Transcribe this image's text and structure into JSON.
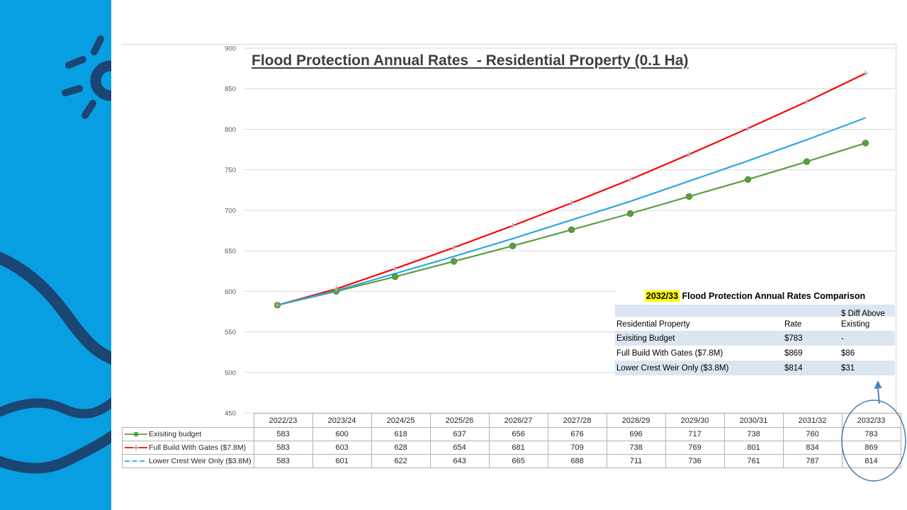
{
  "chart": {
    "title": "Flood Protection Annual Rates  - Residential Property (0.1 Ha)"
  },
  "chart_data": {
    "type": "line",
    "title": "Flood Protection Annual Rates  - Residential Property (0.1 Ha)",
    "xlabel": "",
    "ylabel": "",
    "categories": [
      "2022/23",
      "2023/24",
      "2024/25",
      "2025/26",
      "2026/27",
      "2027/28",
      "2028/29",
      "2029/30",
      "2030/31",
      "2031/32",
      "2032/33"
    ],
    "series": [
      {
        "name": "Exisiting budget",
        "color": "#5b9e42",
        "marker": "circle",
        "legend_dash": "solid",
        "values": [
          583,
          600,
          618,
          637,
          656,
          676,
          696,
          717,
          738,
          760,
          783
        ]
      },
      {
        "name": "Full Build With Gates ($7.8M)",
        "color": "#fe0000",
        "marker": "plus",
        "legend_dash": "solid",
        "values": [
          583,
          603,
          628,
          654,
          681,
          709,
          738,
          769,
          801,
          834,
          869
        ]
      },
      {
        "name": "Lower Crest Weir Only ($3.8M)",
        "color": "#2da9e0",
        "marker": "none",
        "legend_dash": "dashed",
        "values": [
          583,
          601,
          622,
          643,
          665,
          688,
          711,
          736,
          761,
          787,
          814
        ]
      }
    ],
    "ylim": [
      450,
      900
    ],
    "ytick_step": 50,
    "yticks": [
      450,
      500,
      550,
      600,
      650,
      700,
      750,
      800,
      850,
      900
    ],
    "grid": "horizontal",
    "legend_position": "table-left",
    "gridline_color": "#d9d9d9",
    "axis_label_color": "#595959",
    "marker_plus_color": "#b3a8bb"
  },
  "comparison_table": {
    "title_highlight": "2032/33",
    "title_rest": " Flood Protection Annual Rates Comparison",
    "highlight_color": "#ffff00",
    "band_color": "#dce6f2",
    "columns": [
      "Residential Property",
      "Rate",
      "$ Diff Above\nExisting"
    ],
    "rows": [
      [
        "Exisiting Budget",
        "$783",
        "-"
      ],
      [
        "Full Build With Gates ($7.8M)",
        "$869",
        "$86"
      ],
      [
        "Lower Crest Weir Only ($3.8M)",
        "$814",
        "$31"
      ]
    ]
  },
  "annotations": {
    "ellipse_color": "#4a7ab0",
    "arrow_color": "#4a86c0"
  },
  "decor": {
    "sidebar_color": "#089fe2",
    "shape_color": "#1b4573"
  }
}
